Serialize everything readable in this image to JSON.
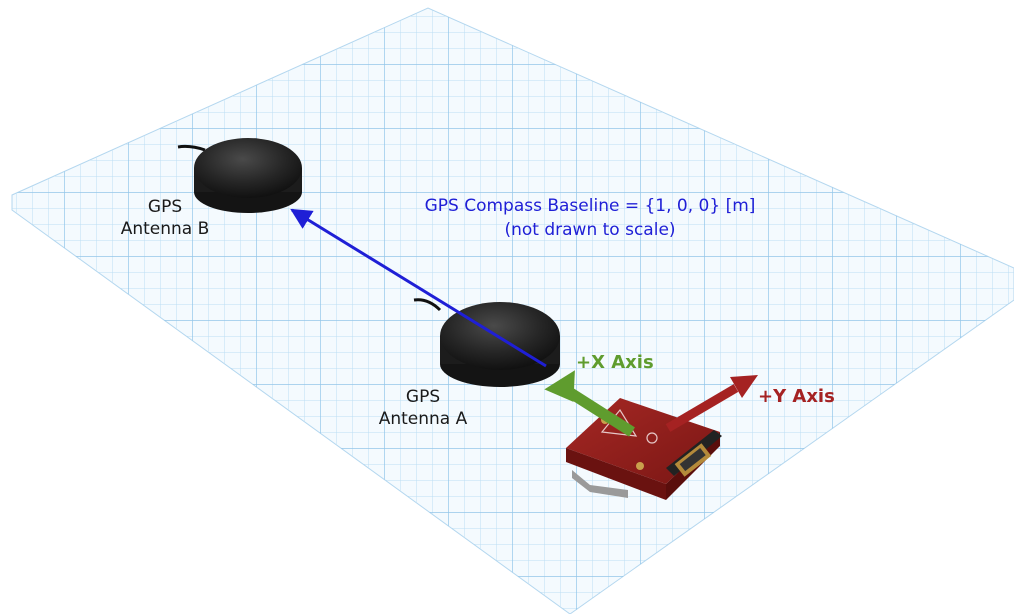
{
  "labels": {
    "antenna_b": [
      "GPS",
      "Antenna B"
    ],
    "antenna_a": [
      "GPS",
      "Antenna A"
    ],
    "baseline": [
      "GPS Compass Baseline = {1, 0, 0} [m]",
      "(not drawn to scale)"
    ],
    "x_axis": "+X Axis",
    "y_axis": "+Y Axis"
  },
  "colors": {
    "baseline": "#1f1fd6",
    "x_axis": "#5f9c2e",
    "y_axis": "#a52222",
    "grid": "#a9d2ee",
    "device": "#8e1d1a"
  }
}
